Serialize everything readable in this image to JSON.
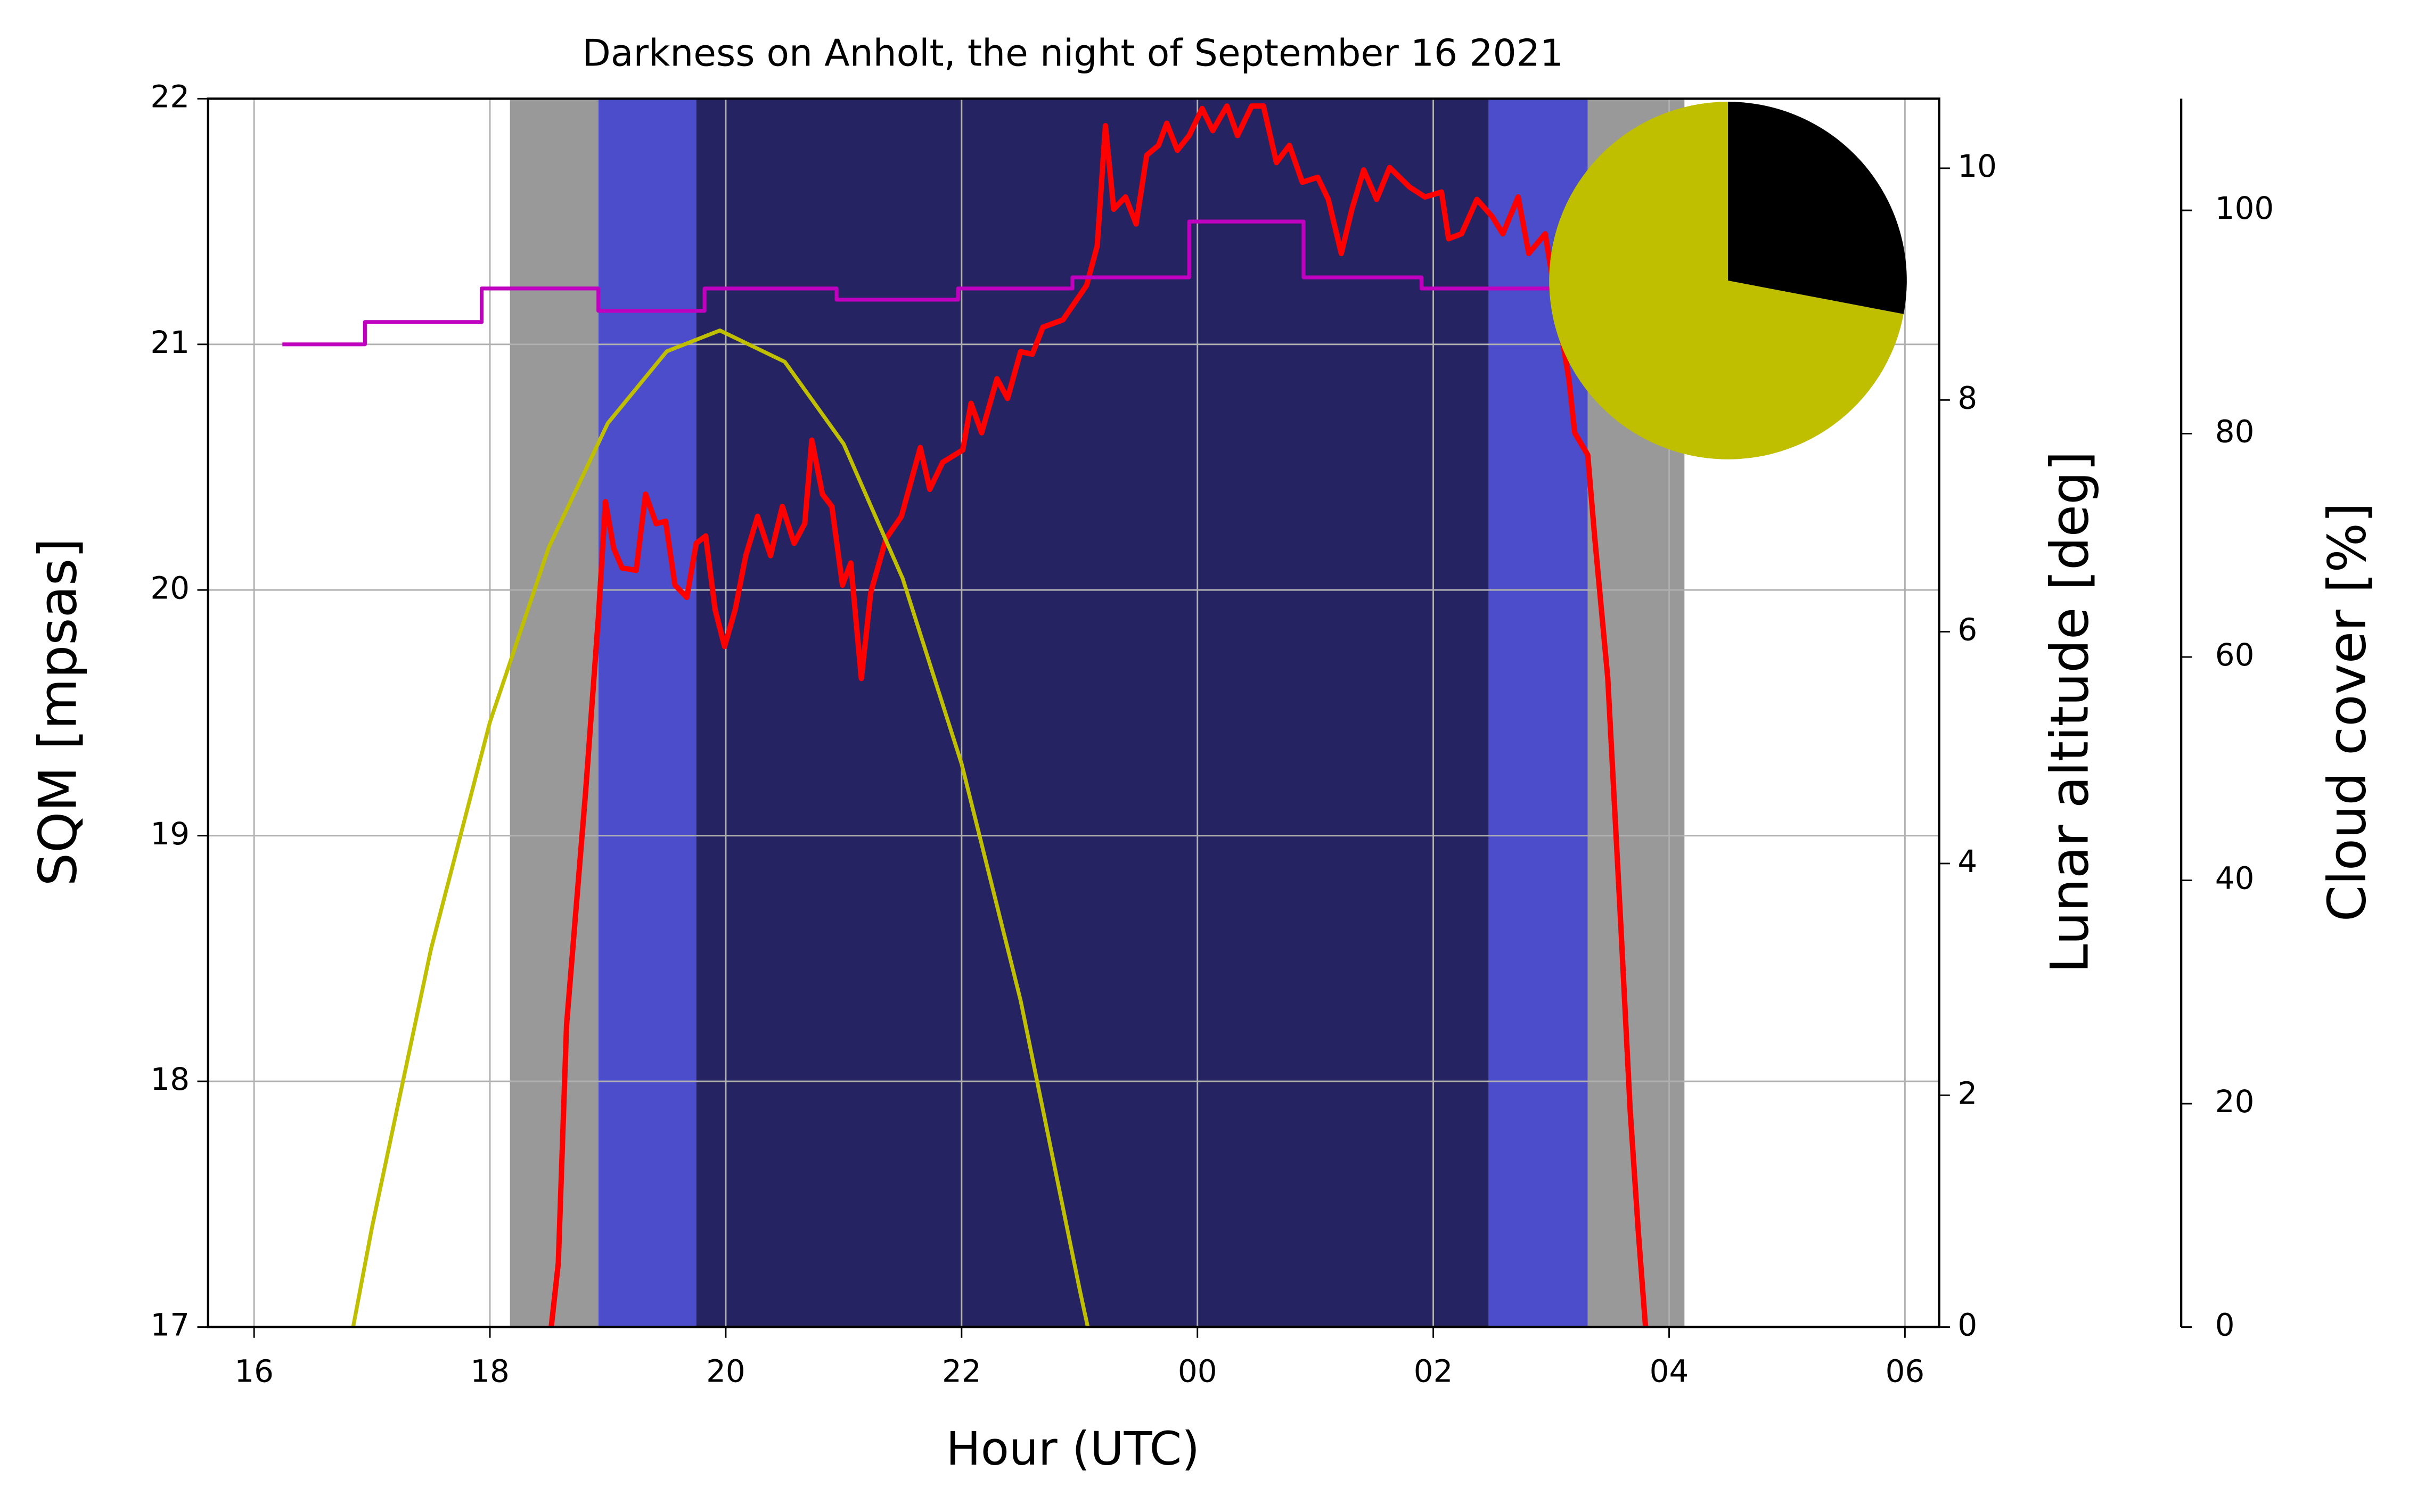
{
  "chart_data": [
    {
      "type": "line",
      "title": "Darkness on Anholt, the night of September 16 2021",
      "xlabel": "Hour (UTC)",
      "ylabel": "SQM [mpsas]",
      "ylabel_color": "#ff0000",
      "y2label": "Lunar altitude [deg]",
      "y2label_color": "#bfbf00",
      "y3label": "Cloud cover [%]",
      "y3label_color": "#bf00bf",
      "xlim": [
        15.61,
        30.29
      ],
      "xticks": [
        16,
        18,
        20,
        22,
        {
          "value": 24,
          "label": "00"
        },
        {
          "value": 26,
          "label": "02"
        },
        {
          "value": 28,
          "label": "04"
        },
        {
          "value": 30,
          "label": "06"
        }
      ],
      "ylim": [
        17,
        22
      ],
      "yticks": [
        17,
        18,
        19,
        20,
        21,
        22
      ],
      "y2lim": [
        0,
        10.6
      ],
      "y2ticks": [
        0,
        2,
        4,
        6,
        8,
        10
      ],
      "y3lim": [
        0,
        110
      ],
      "y3ticks": [
        0,
        20,
        40,
        60,
        80,
        100
      ],
      "grid": true,
      "bands": [
        {
          "xrange": [
            18.17,
            18.92
          ],
          "color": "#999999"
        },
        {
          "xrange": [
            18.92,
            19.75
          ],
          "color": "#4b4dcb"
        },
        {
          "xrange": [
            19.75,
            26.47
          ],
          "color": "#252362"
        },
        {
          "xrange": [
            26.47,
            27.31
          ],
          "color": "#4b4dcb"
        },
        {
          "xrange": [
            27.31,
            28.13
          ],
          "color": "#999999"
        }
      ],
      "series": [
        {
          "color": "#ff0000",
          "axis": "y",
          "x": [
            18.52,
            18.58,
            18.65,
            18.81,
            18.92,
            18.98,
            19.05,
            19.12,
            19.24,
            19.32,
            19.41,
            19.49,
            19.57,
            19.67,
            19.75,
            19.83,
            19.91,
            19.99,
            20.08,
            20.17,
            20.27,
            20.38,
            20.48,
            20.58,
            20.67,
            20.73,
            20.82,
            20.9,
            20.99,
            21.06,
            21.15,
            21.23,
            21.36,
            21.49,
            21.65,
            21.73,
            21.84,
            22.01,
            22.08,
            22.17,
            22.3,
            22.39,
            22.5,
            22.6,
            22.69,
            22.86,
            23.06,
            23.15,
            23.22,
            23.29,
            23.39,
            23.48,
            23.57,
            23.67,
            23.74,
            23.83,
            23.93,
            24.04,
            24.13,
            24.25,
            24.34,
            24.46,
            24.56,
            24.67,
            24.78,
            24.89,
            25.02,
            25.11,
            25.22,
            25.31,
            25.41,
            25.52,
            25.63,
            25.8,
            25.93,
            26.07,
            26.13,
            26.24,
            26.37,
            26.5,
            26.59,
            26.72,
            26.81,
            26.95,
            27.05,
            27.15,
            27.2,
            27.31,
            27.37,
            27.48,
            27.59,
            27.67,
            27.74,
            27.8
          ],
          "values": [
            17.0,
            17.26,
            18.23,
            19.17,
            19.89,
            20.36,
            20.17,
            20.09,
            20.08,
            20.39,
            20.27,
            20.28,
            20.02,
            19.97,
            20.19,
            20.22,
            19.92,
            19.77,
            19.92,
            20.14,
            20.3,
            20.14,
            20.34,
            20.19,
            20.27,
            20.61,
            20.39,
            20.34,
            20.02,
            20.11,
            19.64,
            19.99,
            20.21,
            20.3,
            20.58,
            20.41,
            20.52,
            20.57,
            20.76,
            20.64,
            20.86,
            20.78,
            20.97,
            20.96,
            21.07,
            21.1,
            21.24,
            21.4,
            21.89,
            21.55,
            21.6,
            21.49,
            21.77,
            21.81,
            21.9,
            21.79,
            21.85,
            21.96,
            21.87,
            21.97,
            21.85,
            21.97,
            21.97,
            21.74,
            21.81,
            21.66,
            21.68,
            21.59,
            21.37,
            21.55,
            21.71,
            21.59,
            21.72,
            21.64,
            21.6,
            21.62,
            21.43,
            21.45,
            21.59,
            21.52,
            21.45,
            21.6,
            21.37,
            21.45,
            21.15,
            20.86,
            20.64,
            20.55,
            20.21,
            19.64,
            18.64,
            17.88,
            17.38,
            17.0
          ]
        },
        {
          "color": "#bfbf00",
          "axis": "y2",
          "x": [
            16.84,
            17,
            17.5,
            18,
            18.5,
            19,
            19.5,
            19.95,
            20.5,
            21,
            21.5,
            22,
            22.5,
            23,
            23.07
          ],
          "values": [
            0,
            0.86,
            3.26,
            5.22,
            6.73,
            7.8,
            8.42,
            8.6,
            8.33,
            7.62,
            6.46,
            4.86,
            2.82,
            0.33,
            0
          ]
        },
        {
          "color": "#bf00bf",
          "axis": "y3",
          "x": [
            16.24,
            16.94,
            16.94,
            17.93,
            17.93,
            18.92,
            18.92,
            19.82,
            19.82,
            20.94,
            20.94,
            21.97,
            21.97,
            22.94,
            22.94,
            23.93,
            23.93,
            24.9,
            24.9,
            25.9,
            25.9,
            27.0
          ],
          "values": [
            88,
            88,
            90,
            90,
            93,
            93,
            91,
            91,
            93,
            93,
            92,
            92,
            93,
            93,
            94,
            94,
            99,
            99,
            94,
            94,
            93,
            93
          ]
        }
      ]
    },
    {
      "type": "pie",
      "values": [
        72,
        28
      ],
      "colors": [
        "#bfbf00",
        "#000000"
      ]
    }
  ]
}
